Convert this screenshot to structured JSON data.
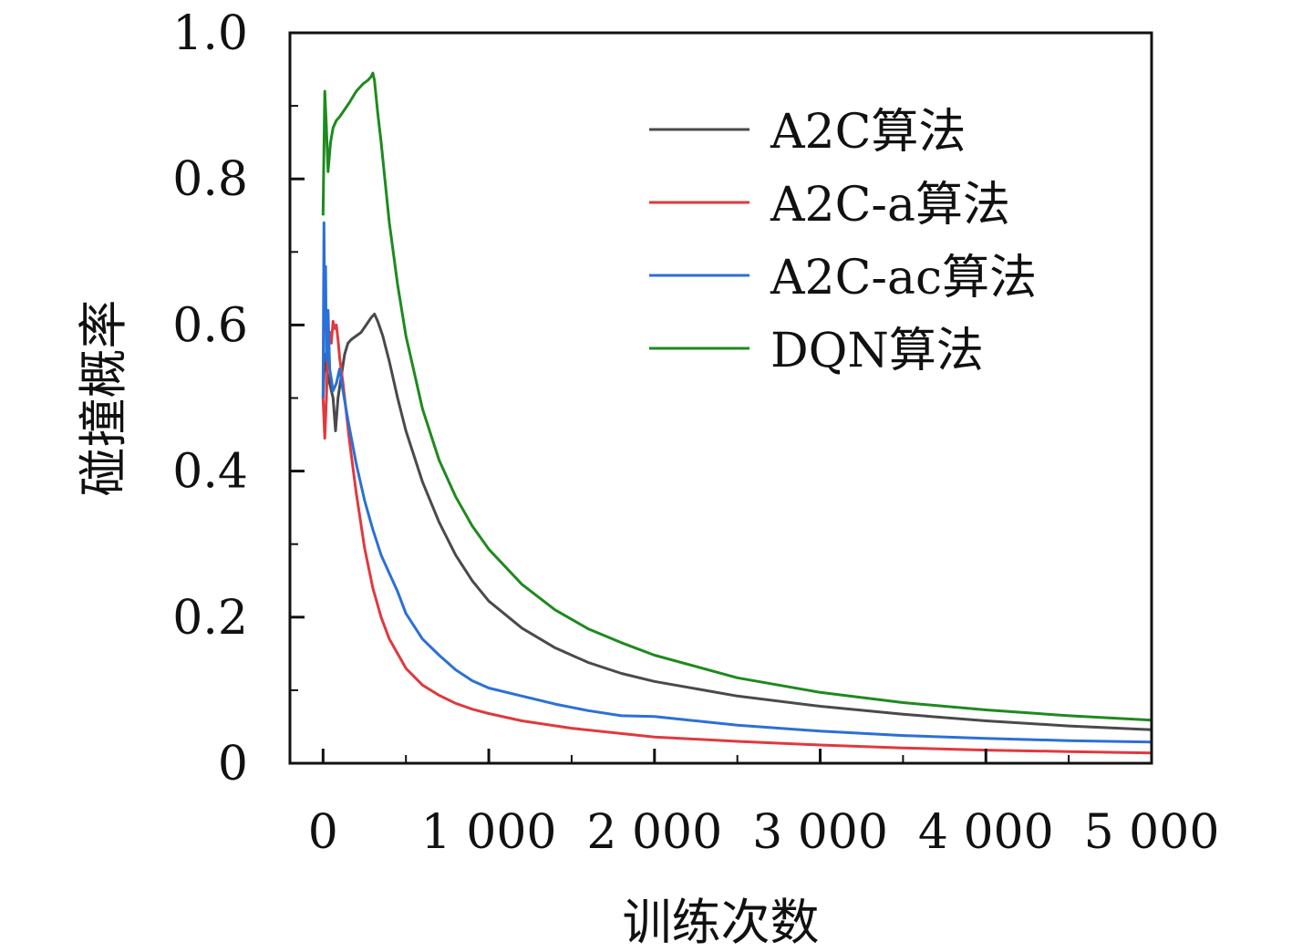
{
  "chart_data": {
    "type": "line",
    "xlabel": "训练次数",
    "ylabel": "碰撞概率",
    "xlim": [
      -200,
      5000
    ],
    "ylim": [
      0,
      1.0
    ],
    "x_ticks": [
      0,
      1000,
      2000,
      3000,
      4000,
      5000
    ],
    "x_tick_labels": [
      "0",
      "1 000",
      "2 000",
      "3 000",
      "4 000",
      "5 000"
    ],
    "y_ticks": [
      0,
      0.2,
      0.4,
      0.6,
      0.8,
      1.0
    ],
    "y_tick_labels": [
      "0",
      "0.2",
      "0.4",
      "0.6",
      "0.8",
      "1.0"
    ],
    "grid": false,
    "legend_position": "top-right",
    "series": [
      {
        "name": "A2C算法",
        "color": "#4a4a4a",
        "points": [
          [
            0,
            0.5
          ],
          [
            10,
            0.56
          ],
          [
            20,
            0.54
          ],
          [
            40,
            0.52
          ],
          [
            60,
            0.5
          ],
          [
            75,
            0.455
          ],
          [
            90,
            0.5
          ],
          [
            110,
            0.53
          ],
          [
            130,
            0.56
          ],
          [
            150,
            0.575
          ],
          [
            170,
            0.58
          ],
          [
            200,
            0.585
          ],
          [
            230,
            0.59
          ],
          [
            260,
            0.6
          ],
          [
            290,
            0.61
          ],
          [
            310,
            0.615
          ],
          [
            330,
            0.605
          ],
          [
            360,
            0.585
          ],
          [
            400,
            0.55
          ],
          [
            450,
            0.5
          ],
          [
            500,
            0.455
          ],
          [
            600,
            0.385
          ],
          [
            700,
            0.33
          ],
          [
            800,
            0.285
          ],
          [
            900,
            0.25
          ],
          [
            1000,
            0.222
          ],
          [
            1200,
            0.185
          ],
          [
            1400,
            0.158
          ],
          [
            1600,
            0.138
          ],
          [
            1800,
            0.123
          ],
          [
            2000,
            0.112
          ],
          [
            2500,
            0.092
          ],
          [
            3000,
            0.078
          ],
          [
            3500,
            0.067
          ],
          [
            4000,
            0.058
          ],
          [
            4500,
            0.051
          ],
          [
            5000,
            0.046
          ]
        ]
      },
      {
        "name": "A2C-a算法",
        "color": "#e0393e",
        "points": [
          [
            0,
            0.5
          ],
          [
            10,
            0.445
          ],
          [
            20,
            0.5
          ],
          [
            30,
            0.58
          ],
          [
            40,
            0.59
          ],
          [
            50,
            0.575
          ],
          [
            60,
            0.605
          ],
          [
            70,
            0.595
          ],
          [
            80,
            0.6
          ],
          [
            90,
            0.58
          ],
          [
            100,
            0.555
          ],
          [
            120,
            0.52
          ],
          [
            140,
            0.48
          ],
          [
            160,
            0.44
          ],
          [
            200,
            0.37
          ],
          [
            250,
            0.295
          ],
          [
            300,
            0.24
          ],
          [
            350,
            0.2
          ],
          [
            400,
            0.17
          ],
          [
            500,
            0.13
          ],
          [
            600,
            0.107
          ],
          [
            700,
            0.093
          ],
          [
            800,
            0.082
          ],
          [
            900,
            0.074
          ],
          [
            1000,
            0.068
          ],
          [
            1200,
            0.058
          ],
          [
            1500,
            0.048
          ],
          [
            2000,
            0.036
          ],
          [
            2500,
            0.03
          ],
          [
            3000,
            0.025
          ],
          [
            3500,
            0.021
          ],
          [
            4000,
            0.018
          ],
          [
            4500,
            0.016
          ],
          [
            5000,
            0.014
          ]
        ]
      },
      {
        "name": "A2C-ac算法",
        "color": "#2b70d6",
        "points": [
          [
            0,
            0.5
          ],
          [
            5,
            0.74
          ],
          [
            10,
            0.6
          ],
          [
            15,
            0.68
          ],
          [
            20,
            0.55
          ],
          [
            30,
            0.62
          ],
          [
            40,
            0.54
          ],
          [
            60,
            0.51
          ],
          [
            80,
            0.52
          ],
          [
            100,
            0.54
          ],
          [
            120,
            0.51
          ],
          [
            150,
            0.47
          ],
          [
            200,
            0.41
          ],
          [
            250,
            0.36
          ],
          [
            300,
            0.32
          ],
          [
            350,
            0.285
          ],
          [
            400,
            0.26
          ],
          [
            450,
            0.235
          ],
          [
            500,
            0.205
          ],
          [
            600,
            0.17
          ],
          [
            700,
            0.148
          ],
          [
            800,
            0.128
          ],
          [
            900,
            0.113
          ],
          [
            1000,
            0.103
          ],
          [
            1200,
            0.092
          ],
          [
            1400,
            0.081
          ],
          [
            1600,
            0.072
          ],
          [
            1800,
            0.065
          ],
          [
            2000,
            0.064
          ],
          [
            2500,
            0.052
          ],
          [
            3000,
            0.044
          ],
          [
            3500,
            0.038
          ],
          [
            4000,
            0.034
          ],
          [
            4500,
            0.031
          ],
          [
            5000,
            0.029
          ]
        ]
      },
      {
        "name": "DQN算法",
        "color": "#1e8a1e",
        "points": [
          [
            0,
            0.75
          ],
          [
            10,
            0.92
          ],
          [
            20,
            0.87
          ],
          [
            30,
            0.81
          ],
          [
            45,
            0.85
          ],
          [
            60,
            0.87
          ],
          [
            80,
            0.88
          ],
          [
            100,
            0.885
          ],
          [
            130,
            0.895
          ],
          [
            160,
            0.905
          ],
          [
            200,
            0.92
          ],
          [
            240,
            0.93
          ],
          [
            270,
            0.935
          ],
          [
            290,
            0.94
          ],
          [
            300,
            0.945
          ],
          [
            310,
            0.935
          ],
          [
            330,
            0.89
          ],
          [
            350,
            0.85
          ],
          [
            400,
            0.74
          ],
          [
            450,
            0.655
          ],
          [
            500,
            0.585
          ],
          [
            600,
            0.485
          ],
          [
            700,
            0.415
          ],
          [
            800,
            0.365
          ],
          [
            900,
            0.325
          ],
          [
            1000,
            0.293
          ],
          [
            1200,
            0.245
          ],
          [
            1400,
            0.21
          ],
          [
            1600,
            0.184
          ],
          [
            1800,
            0.165
          ],
          [
            2000,
            0.148
          ],
          [
            2500,
            0.117
          ],
          [
            3000,
            0.097
          ],
          [
            3500,
            0.083
          ],
          [
            4000,
            0.073
          ],
          [
            4500,
            0.065
          ],
          [
            5000,
            0.059
          ]
        ]
      }
    ]
  }
}
